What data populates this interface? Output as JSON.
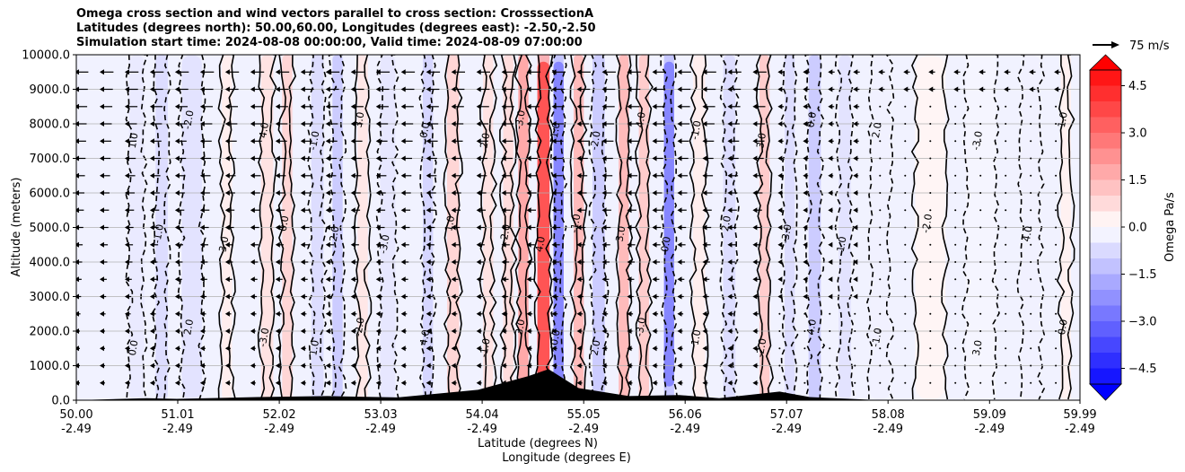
{
  "title": {
    "line1": "Omega cross section and wind vectors parallel to cross section: CrosssectionA",
    "line2": "Latitudes (degrees north): 50.00,60.00, Longitudes (degrees east): -2.50,-2.50",
    "line3": "Simulation start time: 2024-08-08 00:00:00, Valid time: 2024-08-09 07:00:00"
  },
  "chart_data": {
    "type": "heatmap",
    "variable": "Omega",
    "ylabel": "Altitude (meters)",
    "xlabel_1": "Latitude (degrees N)",
    "xlabel_2": "Longitude (degrees E)",
    "ylim": [
      0,
      10000
    ],
    "y_ticks": [
      "0.0",
      "1000.0",
      "2000.0",
      "3000.0",
      "4000.0",
      "5000.0",
      "6000.0",
      "7000.0",
      "8000.0",
      "9000.0",
      "10000.0"
    ],
    "x_range": [
      50.0,
      59.99
    ],
    "x_ticks": [
      {
        "lat": "50.00",
        "lon": "-2.49"
      },
      {
        "lat": "51.01",
        "lon": "-2.49"
      },
      {
        "lat": "52.02",
        "lon": "-2.49"
      },
      {
        "lat": "53.03",
        "lon": "-2.49"
      },
      {
        "lat": "54.04",
        "lon": "-2.49"
      },
      {
        "lat": "55.05",
        "lon": "-2.49"
      },
      {
        "lat": "56.06",
        "lon": "-2.49"
      },
      {
        "lat": "57.07",
        "lon": "-2.49"
      },
      {
        "lat": "58.08",
        "lon": "-2.49"
      },
      {
        "lat": "59.09",
        "lon": "-2.49"
      },
      {
        "lat": "59.99",
        "lon": "-2.49"
      }
    ],
    "omega_bands": [
      {
        "lat": 50.6,
        "width": 0.15,
        "value": -0.6
      },
      {
        "lat": 50.85,
        "width": 0.12,
        "value": -1.0
      },
      {
        "lat": 51.15,
        "width": 0.2,
        "value": -0.8
      },
      {
        "lat": 51.5,
        "width": 0.1,
        "value": 0.5
      },
      {
        "lat": 51.9,
        "width": 0.12,
        "value": 0.8
      },
      {
        "lat": 52.1,
        "width": 0.1,
        "value": 1.2
      },
      {
        "lat": 52.4,
        "width": 0.12,
        "value": -1.0
      },
      {
        "lat": 52.6,
        "width": 0.1,
        "value": -1.5
      },
      {
        "lat": 52.85,
        "width": 0.1,
        "value": 0.7
      },
      {
        "lat": 53.1,
        "width": 0.15,
        "value": -0.7
      },
      {
        "lat": 53.5,
        "width": 0.1,
        "value": -1.2
      },
      {
        "lat": 53.75,
        "width": 0.12,
        "value": 1.2
      },
      {
        "lat": 54.1,
        "width": 0.1,
        "value": 0.8
      },
      {
        "lat": 54.3,
        "width": 0.1,
        "value": 1.0
      },
      {
        "lat": 54.45,
        "width": 0.1,
        "value": 2.5
      },
      {
        "lat": 54.65,
        "width": 0.12,
        "value": 5.0
      },
      {
        "lat": 54.8,
        "width": 0.1,
        "value": -3.5
      },
      {
        "lat": 55.0,
        "width": 0.1,
        "value": 2.0
      },
      {
        "lat": 55.2,
        "width": 0.12,
        "value": -1.5
      },
      {
        "lat": 55.45,
        "width": 0.1,
        "value": 2.0
      },
      {
        "lat": 55.65,
        "width": 0.1,
        "value": 1.5
      },
      {
        "lat": 55.9,
        "width": 0.1,
        "value": -3.5
      },
      {
        "lat": 56.2,
        "width": 0.12,
        "value": 0.5
      },
      {
        "lat": 56.5,
        "width": 0.12,
        "value": -1.0
      },
      {
        "lat": 56.85,
        "width": 0.1,
        "value": 1.5
      },
      {
        "lat": 57.1,
        "width": 0.1,
        "value": -1.0
      },
      {
        "lat": 57.35,
        "width": 0.12,
        "value": -1.5
      },
      {
        "lat": 57.65,
        "width": 0.12,
        "value": -0.8
      },
      {
        "lat": 58.0,
        "width": 0.2,
        "value": -0.4
      },
      {
        "lat": 58.5,
        "width": 0.3,
        "value": 0.3
      },
      {
        "lat": 59.0,
        "width": 0.3,
        "value": -0.3
      },
      {
        "lat": 59.5,
        "width": 0.2,
        "value": -0.4
      },
      {
        "lat": 59.85,
        "width": 0.1,
        "value": 0.4
      }
    ],
    "contour_labels": [
      "0.0",
      "1.0",
      "-1.0",
      "2.0",
      "-2.0",
      "3.0",
      "-3.0",
      "4.0"
    ],
    "colorbar": {
      "label": "Omega Pa/s",
      "vmin": -5.0,
      "vmax": 5.0,
      "ticks": [
        "4.5",
        "3.0",
        "1.5",
        "0.0",
        "−1.5",
        "−3.0",
        "−4.5"
      ],
      "extend": "both"
    },
    "quiver_key": {
      "label": "75 m/s"
    }
  }
}
